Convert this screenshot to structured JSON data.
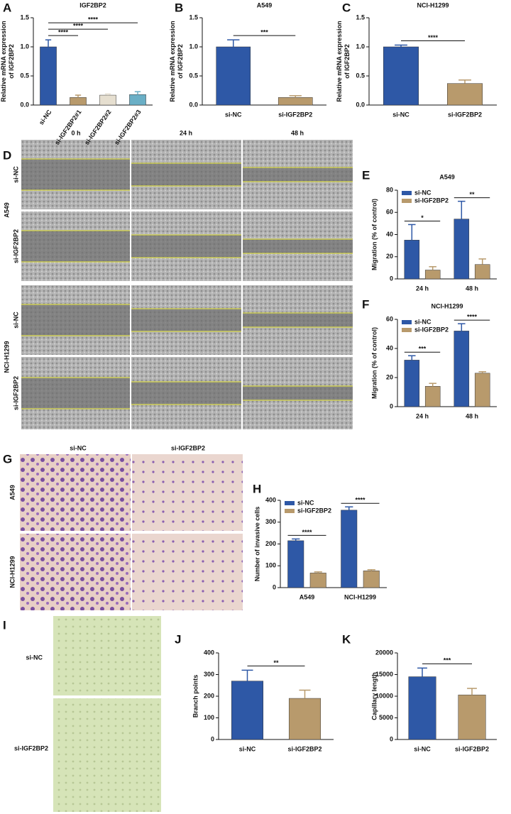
{
  "panel_labels": [
    "A",
    "B",
    "C",
    "D",
    "E",
    "F",
    "G",
    "H",
    "I",
    "J",
    "K"
  ],
  "wound_images": {
    "columns": [
      "0 h",
      "24 h",
      "48 h"
    ],
    "groups": [
      "A549",
      "NCI-H1299"
    ],
    "rows": [
      "si-NC",
      "si-IGF2BP2",
      "si-NC",
      "si-IGF2BP2"
    ]
  },
  "transwell_images": {
    "columns": [
      "si-NC",
      "si-IGF2BP2"
    ],
    "rows": [
      "A549",
      "NCI-H1299"
    ]
  },
  "tube_images": {
    "rows": [
      "si-NC",
      "si-IGF2BP2"
    ]
  },
  "chart_data": [
    {
      "type": "bar",
      "title": "IGF2BP2",
      "ylabel": [
        "Relative mRNA expression",
        "of IGF2BP2"
      ],
      "categories": [
        "si-NC",
        "si-IGF2BP2#1",
        "si-IGF2BP2#2",
        "si-IGF2BP2#3"
      ],
      "values": [
        1.0,
        0.13,
        0.17,
        0.18
      ],
      "errors": [
        0.12,
        0.04,
        0.02,
        0.05
      ],
      "colors": [
        "#2e58a6",
        "#b89a6c",
        "#e6dfd0",
        "#6aafc6"
      ],
      "ylim": [
        0,
        1.5
      ],
      "yticks": [
        {
          "value": 0,
          "label": "0.0"
        },
        {
          "value": 0.5,
          "label": "0.5"
        },
        {
          "value": 1,
          "label": "1.0"
        },
        {
          "value": 1.5,
          "label": "1.5"
        }
      ],
      "annotations": [
        {
          "text": "****",
          "pair": [
            0,
            1
          ]
        },
        {
          "text": "****",
          "pair": [
            0,
            2
          ]
        },
        {
          "text": "****",
          "pair": [
            0,
            3
          ]
        }
      ]
    },
    {
      "type": "bar",
      "title": "A549",
      "ylabel": [
        "Relative mRNA expression",
        "of IGF2BP2"
      ],
      "categories": [
        "si-NC",
        "si-IGF2BP2"
      ],
      "values": [
        1.0,
        0.13
      ],
      "errors": [
        0.12,
        0.03
      ],
      "colors": [
        "#2e58a6",
        "#b89a6c"
      ],
      "ylim": [
        0,
        1.5
      ],
      "yticks": [
        {
          "value": 0,
          "label": "0.0"
        },
        {
          "value": 0.5,
          "label": "0.5"
        },
        {
          "value": 1,
          "label": "1.0"
        },
        {
          "value": 1.5,
          "label": "1.5"
        }
      ],
      "annotations": [
        {
          "text": "***",
          "pair": [
            0,
            1
          ]
        }
      ]
    },
    {
      "type": "bar",
      "title": "NCI-H1299",
      "ylabel": [
        "Relative mRNA expression",
        "of IGF2BP2"
      ],
      "categories": [
        "si-NC",
        "si-IGF2BP2"
      ],
      "values": [
        1.0,
        0.37
      ],
      "errors": [
        0.03,
        0.06
      ],
      "colors": [
        "#2e58a6",
        "#b89a6c"
      ],
      "ylim": [
        0,
        1.5
      ],
      "yticks": [
        {
          "value": 0,
          "label": "0.0"
        },
        {
          "value": 0.5,
          "label": "0.5"
        },
        {
          "value": 1,
          "label": "1.0"
        },
        {
          "value": 1.5,
          "label": "1.5"
        }
      ],
      "annotations": [
        {
          "text": "****",
          "pair": [
            0,
            1
          ]
        }
      ]
    },
    {
      "type": "grouped_bar",
      "title": "A549",
      "ylabel": [
        "Migration (% of control)"
      ],
      "categories": [
        "24 h",
        "48 h"
      ],
      "series": [
        {
          "name": "si-NC",
          "color": "#2e58a6",
          "values": [
            35,
            54
          ],
          "errors": [
            14,
            16
          ]
        },
        {
          "name": "si-IGF2BP2",
          "color": "#b89a6c",
          "values": [
            8,
            13
          ],
          "errors": [
            3,
            5
          ]
        }
      ],
      "ylim": [
        0,
        80
      ],
      "yticks": [
        0,
        20,
        40,
        60,
        80
      ],
      "legend": "top-left",
      "annotations": [
        {
          "text": "*",
          "category": 0
        },
        {
          "text": "**",
          "category": 1
        }
      ]
    },
    {
      "type": "grouped_bar",
      "title": "NCI-H1299",
      "ylabel": [
        "Migration (% of control)"
      ],
      "categories": [
        "24 h",
        "48 h"
      ],
      "series": [
        {
          "name": "si-NC",
          "color": "#2e58a6",
          "values": [
            32,
            52
          ],
          "errors": [
            3,
            5
          ]
        },
        {
          "name": "si-IGF2BP2",
          "color": "#b89a6c",
          "values": [
            14,
            23
          ],
          "errors": [
            2,
            1
          ]
        }
      ],
      "ylim": [
        0,
        60
      ],
      "yticks": [
        0,
        20,
        40,
        60
      ],
      "legend": "top-left",
      "annotations": [
        {
          "text": "***",
          "category": 0
        },
        {
          "text": "****",
          "category": 1
        }
      ]
    },
    {
      "type": "grouped_bar",
      "ylabel": [
        "Number of invasive cells"
      ],
      "categories": [
        "A549",
        "NCI-H1299"
      ],
      "series": [
        {
          "name": "si-NC",
          "color": "#2e58a6",
          "values": [
            215,
            355
          ],
          "errors": [
            8,
            15
          ]
        },
        {
          "name": "si-IGF2BP2",
          "color": "#b89a6c",
          "values": [
            67,
            77
          ],
          "errors": [
            5,
            5
          ]
        }
      ],
      "ylim": [
        0,
        400
      ],
      "yticks": [
        0,
        100,
        200,
        300,
        400
      ],
      "legend": "top-left",
      "annotations": [
        {
          "text": "****",
          "category": 0
        },
        {
          "text": "****",
          "category": 1
        }
      ]
    },
    {
      "type": "bar",
      "ylabel": [
        "Branch points"
      ],
      "categories": [
        "si-NC",
        "si-IGF2BP2"
      ],
      "values": [
        270,
        190
      ],
      "errors": [
        50,
        38
      ],
      "colors": [
        "#2e58a6",
        "#b89a6c"
      ],
      "ylim": [
        0,
        400
      ],
      "yticks": [
        0,
        100,
        200,
        300,
        400
      ],
      "annotations": [
        {
          "text": "**",
          "pair": [
            0,
            1
          ]
        }
      ]
    },
    {
      "type": "bar",
      "ylabel": [
        "Capillary length"
      ],
      "categories": [
        "si-NC",
        "si-IGF2BP2"
      ],
      "values": [
        14500,
        10300
      ],
      "errors": [
        2000,
        1500
      ],
      "colors": [
        "#2e58a6",
        "#b89a6c"
      ],
      "ylim": [
        0,
        20000
      ],
      "yticks": [
        0,
        5000,
        10000,
        15000,
        20000
      ],
      "annotations": [
        {
          "text": "***",
          "pair": [
            0,
            1
          ]
        }
      ]
    }
  ]
}
